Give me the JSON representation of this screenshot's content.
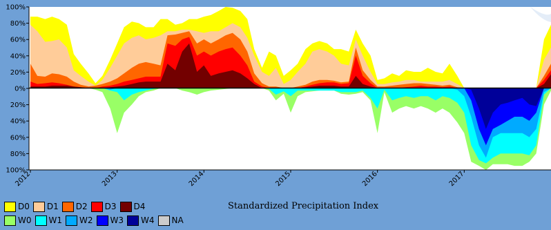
{
  "chart_data": {
    "type": "area",
    "title": "Standardized Precipitation Index",
    "y_tick_labels": [
      "100%",
      "80%",
      "60%",
      "40%",
      "20%",
      "0%",
      "20%",
      "40%",
      "60%",
      "80%",
      "100%"
    ],
    "x_tick_labels": [
      "2012",
      "2013",
      "2014",
      "2015",
      "2016",
      "2017"
    ],
    "ylim": [
      -100,
      100
    ],
    "x": [
      2012.0,
      2012.08,
      2012.17,
      2012.25,
      2012.33,
      2012.42,
      2012.5,
      2012.58,
      2012.67,
      2012.75,
      2012.83,
      2012.92,
      2013.0,
      2013.08,
      2013.17,
      2013.25,
      2013.33,
      2013.42,
      2013.5,
      2013.58,
      2013.67,
      2013.75,
      2013.83,
      2013.92,
      2014.0,
      2014.08,
      2014.17,
      2014.25,
      2014.33,
      2014.42,
      2014.5,
      2014.58,
      2014.67,
      2014.75,
      2014.83,
      2014.92,
      2015.0,
      2015.08,
      2015.17,
      2015.25,
      2015.33,
      2015.42,
      2015.5,
      2015.58,
      2015.67,
      2015.75,
      2015.83,
      2015.92,
      2016.0,
      2016.08,
      2016.17,
      2016.25,
      2016.33,
      2016.42,
      2016.5,
      2016.58,
      2016.67,
      2016.75,
      2016.83,
      2016.92,
      2017.0,
      2017.08,
      2017.17,
      2017.25,
      2017.33,
      2017.42,
      2017.5,
      2017.58,
      2017.67,
      2017.75,
      2017.83,
      2017.92,
      2018.0
    ],
    "dry_series": [
      {
        "name": "D4",
        "color": "#730000",
        "values": [
          2,
          2,
          2,
          3,
          3,
          3,
          2,
          1,
          0,
          0,
          0,
          1,
          2,
          3,
          5,
          7,
          8,
          8,
          8,
          30,
          22,
          45,
          55,
          20,
          28,
          15,
          18,
          20,
          22,
          18,
          12,
          5,
          0,
          0,
          0,
          0,
          0,
          0,
          1,
          2,
          3,
          3,
          3,
          2,
          2,
          15,
          5,
          2,
          0,
          0,
          0,
          0,
          0,
          0,
          0,
          0,
          0,
          0,
          0,
          0,
          0,
          0,
          0,
          0,
          0,
          0,
          0,
          0,
          0,
          0,
          0,
          5,
          17
        ]
      },
      {
        "name": "D3",
        "color": "#ff0000",
        "values": [
          8,
          5,
          6,
          7,
          6,
          4,
          2,
          1,
          0,
          0,
          2,
          3,
          5,
          8,
          10,
          12,
          14,
          14,
          14,
          55,
          52,
          60,
          63,
          40,
          45,
          40,
          45,
          48,
          50,
          40,
          28,
          8,
          2,
          0,
          0,
          0,
          0,
          0,
          2,
          4,
          6,
          7,
          7,
          5,
          6,
          40,
          15,
          6,
          0,
          0,
          0,
          0,
          1,
          2,
          3,
          2,
          2,
          1,
          2,
          0,
          0,
          0,
          0,
          0,
          0,
          0,
          0,
          0,
          0,
          0,
          0,
          10,
          22
        ]
      },
      {
        "name": "D2",
        "color": "#ff6600",
        "values": [
          30,
          15,
          14,
          18,
          17,
          14,
          8,
          4,
          2,
          3,
          5,
          8,
          12,
          18,
          25,
          30,
          32,
          30,
          28,
          65,
          66,
          68,
          70,
          55,
          60,
          55,
          60,
          65,
          68,
          60,
          45,
          18,
          6,
          2,
          2,
          0,
          0,
          2,
          4,
          8,
          10,
          10,
          9,
          7,
          8,
          50,
          22,
          10,
          2,
          2,
          3,
          4,
          5,
          6,
          6,
          5,
          4,
          3,
          4,
          1,
          0,
          0,
          0,
          0,
          0,
          0,
          0,
          0,
          0,
          0,
          0,
          15,
          30
        ]
      },
      {
        "name": "D1",
        "color": "#ffcc99",
        "values": [
          78,
          70,
          57,
          58,
          60,
          50,
          22,
          15,
          8,
          3,
          10,
          25,
          40,
          55,
          62,
          65,
          60,
          62,
          65,
          70,
          70,
          72,
          72,
          70,
          68,
          70,
          70,
          75,
          80,
          75,
          62,
          40,
          20,
          15,
          25,
          5,
          10,
          20,
          30,
          45,
          48,
          45,
          40,
          30,
          28,
          60,
          40,
          20,
          5,
          5,
          7,
          8,
          10,
          10,
          8,
          8,
          8,
          8,
          10,
          5,
          0,
          0,
          0,
          0,
          0,
          0,
          0,
          0,
          0,
          0,
          0,
          35,
          50
        ]
      },
      {
        "name": "D0",
        "color": "#ffff00",
        "values": [
          88,
          88,
          85,
          88,
          85,
          78,
          42,
          30,
          18,
          6,
          15,
          35,
          55,
          75,
          82,
          80,
          75,
          75,
          85,
          85,
          78,
          80,
          85,
          85,
          88,
          90,
          95,
          100,
          99,
          95,
          85,
          48,
          25,
          45,
          40,
          15,
          22,
          30,
          48,
          55,
          58,
          55,
          48,
          48,
          45,
          72,
          55,
          40,
          10,
          12,
          18,
          15,
          22,
          20,
          20,
          25,
          20,
          18,
          30,
          15,
          0,
          0,
          0,
          0,
          0,
          0,
          0,
          0,
          0,
          0,
          0,
          60,
          78
        ]
      }
    ],
    "wet_series": [
      {
        "name": "W4",
        "color": "#000099",
        "values": [
          0,
          0,
          0,
          0,
          0,
          0,
          0,
          0,
          0,
          0,
          0,
          0,
          0,
          0,
          0,
          0,
          0,
          0,
          0,
          0,
          0,
          0,
          0,
          0,
          0,
          0,
          0,
          0,
          0,
          0,
          0,
          0,
          0,
          0,
          0,
          0,
          0,
          0,
          0,
          0,
          0,
          0,
          0,
          0,
          0,
          0,
          0,
          0,
          0,
          0,
          0,
          0,
          0,
          0,
          0,
          0,
          0,
          0,
          0,
          0,
          0,
          2,
          25,
          50,
          30,
          20,
          18,
          15,
          12,
          20,
          22,
          0,
          0
        ]
      },
      {
        "name": "W3",
        "color": "#0000ff",
        "values": [
          0,
          0,
          0,
          0,
          0,
          0,
          0,
          0,
          0,
          0,
          0,
          0,
          0,
          0,
          0,
          0,
          0,
          0,
          0,
          0,
          0,
          0,
          0,
          0,
          0,
          0,
          0,
          0,
          0,
          0,
          0,
          0,
          0,
          0,
          0,
          0,
          0,
          0,
          0,
          0,
          0,
          0,
          0,
          0,
          0,
          0,
          0,
          0,
          0,
          0,
          0,
          0,
          0,
          0,
          0,
          0,
          0,
          0,
          0,
          0,
          0,
          15,
          50,
          70,
          50,
          45,
          40,
          35,
          35,
          40,
          30,
          0,
          0
        ]
      },
      {
        "name": "W2",
        "color": "#00aaff",
        "values": [
          0,
          0,
          0,
          0,
          0,
          0,
          0,
          0,
          0,
          0,
          0,
          2,
          0,
          0,
          0,
          0,
          0,
          0,
          0,
          0,
          0,
          0,
          0,
          0,
          0,
          0,
          0,
          0,
          0,
          0,
          0,
          0,
          0,
          0,
          0,
          0,
          0,
          0,
          0,
          0,
          0,
          0,
          0,
          0,
          0,
          0,
          0,
          0,
          0,
          0,
          0,
          0,
          0,
          0,
          0,
          0,
          0,
          0,
          0,
          2,
          10,
          35,
          70,
          85,
          60,
          55,
          55,
          55,
          55,
          60,
          50,
          5,
          0
        ]
      },
      {
        "name": "W1",
        "color": "#00ffff",
        "values": [
          0,
          0,
          0,
          0,
          0,
          0,
          0,
          0,
          0,
          0,
          0,
          3,
          5,
          15,
          8,
          5,
          3,
          1,
          0,
          0,
          0,
          0,
          0,
          0,
          0,
          0,
          0,
          0,
          0,
          0,
          0,
          0,
          0,
          1,
          8,
          4,
          10,
          3,
          3,
          3,
          3,
          3,
          3,
          5,
          5,
          5,
          3,
          12,
          25,
          2,
          15,
          12,
          10,
          12,
          10,
          10,
          15,
          10,
          12,
          18,
          30,
          70,
          88,
          92,
          85,
          80,
          80,
          80,
          80,
          82,
          70,
          8,
          0
        ]
      },
      {
        "name": "W0",
        "color": "#99ff66",
        "values": [
          0,
          0,
          0,
          0,
          0,
          0,
          0,
          0,
          0,
          2,
          5,
          25,
          55,
          30,
          20,
          10,
          5,
          3,
          0,
          0,
          0,
          3,
          5,
          8,
          5,
          3,
          2,
          1,
          0,
          0,
          0,
          0,
          0,
          3,
          15,
          7,
          30,
          10,
          5,
          4,
          3,
          3,
          3,
          7,
          8,
          7,
          5,
          15,
          55,
          5,
          30,
          25,
          22,
          25,
          22,
          25,
          30,
          25,
          30,
          42,
          55,
          90,
          95,
          100,
          93,
          93,
          93,
          95,
          95,
          90,
          80,
          20,
          3
        ]
      }
    ],
    "legend": {
      "row1": [
        {
          "label": "D0",
          "color": "#ffff00"
        },
        {
          "label": "D1",
          "color": "#ffcc99"
        },
        {
          "label": "D2",
          "color": "#ff6600"
        },
        {
          "label": "D3",
          "color": "#ff0000"
        },
        {
          "label": "D4",
          "color": "#730000"
        }
      ],
      "row2": [
        {
          "label": "W0",
          "color": "#99ff66"
        },
        {
          "label": "W1",
          "color": "#00ffff"
        },
        {
          "label": "W2",
          "color": "#00aaff"
        },
        {
          "label": "W3",
          "color": "#0000ff"
        },
        {
          "label": "W4",
          "color": "#000099"
        },
        {
          "label": "NA",
          "color": "#cccccc"
        }
      ]
    }
  }
}
